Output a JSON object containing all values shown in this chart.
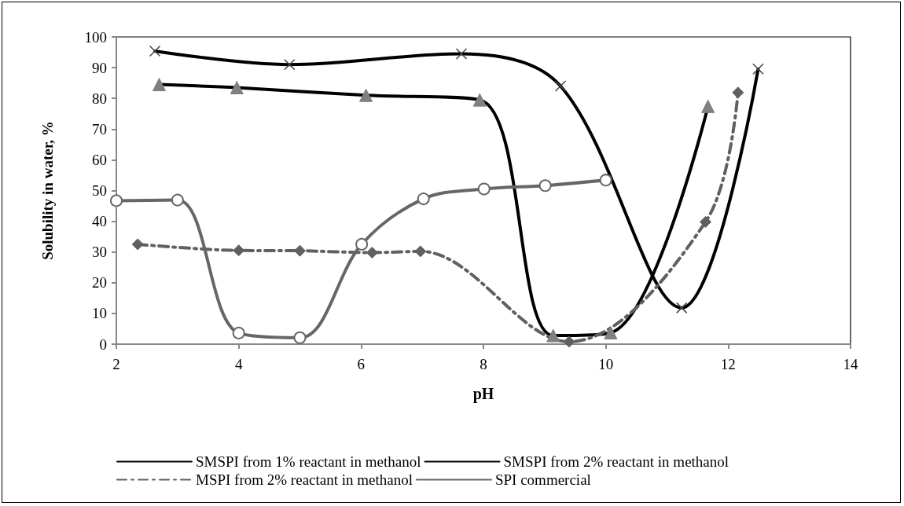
{
  "chart_data": {
    "type": "line",
    "xlabel": "pH",
    "ylabel": "Solubility in water, %",
    "xlim": [
      2,
      14
    ],
    "xticks": [
      2,
      4,
      6,
      8,
      10,
      12,
      14
    ],
    "ylim": [
      0,
      100
    ],
    "yticks": [
      0,
      10,
      20,
      30,
      40,
      50,
      60,
      70,
      80,
      90,
      100
    ],
    "grid": false,
    "legend": "bottom",
    "series": [
      {
        "name": "SMSPI from 1% reactant in methanol",
        "color": "#000000",
        "marker": "cross",
        "line_style": "solid",
        "x": [
          2.63,
          4.83,
          7.64,
          9.26,
          11.24,
          12.49
        ],
        "values": [
          95.4,
          91.0,
          94.5,
          84.0,
          11.8,
          89.6
        ]
      },
      {
        "name": "SMSPI from 2% reactant in methanol",
        "color": "#000000",
        "marker": "triangle",
        "line_style": "solid",
        "x": [
          2.7,
          3.97,
          6.08,
          7.94,
          9.14,
          10.08,
          11.67
        ],
        "values": [
          84.5,
          83.5,
          81,
          79.5,
          2.8,
          3.7,
          77.4
        ]
      },
      {
        "name": "MSPI from 2% reactant in methanol",
        "color": "#606060",
        "marker": "diamond",
        "line_style": "dashed",
        "x": [
          2.35,
          4.0,
          5.0,
          6.18,
          6.97,
          9.4,
          11.63,
          12.16
        ],
        "values": [
          32.5,
          30.5,
          30.4,
          29.8,
          30.2,
          0.8,
          39.8,
          81.9
        ]
      },
      {
        "name": "SPI commercial",
        "color": "#666666",
        "marker": "circle",
        "line_style": "solid",
        "x": [
          2.0,
          3.0,
          4.0,
          5.0,
          6.01,
          7.02,
          8.01,
          9.01,
          10.0
        ],
        "values": [
          46.7,
          46.9,
          3.6,
          2.1,
          32.5,
          47.3,
          50.5,
          51.6,
          53.4
        ]
      }
    ]
  }
}
